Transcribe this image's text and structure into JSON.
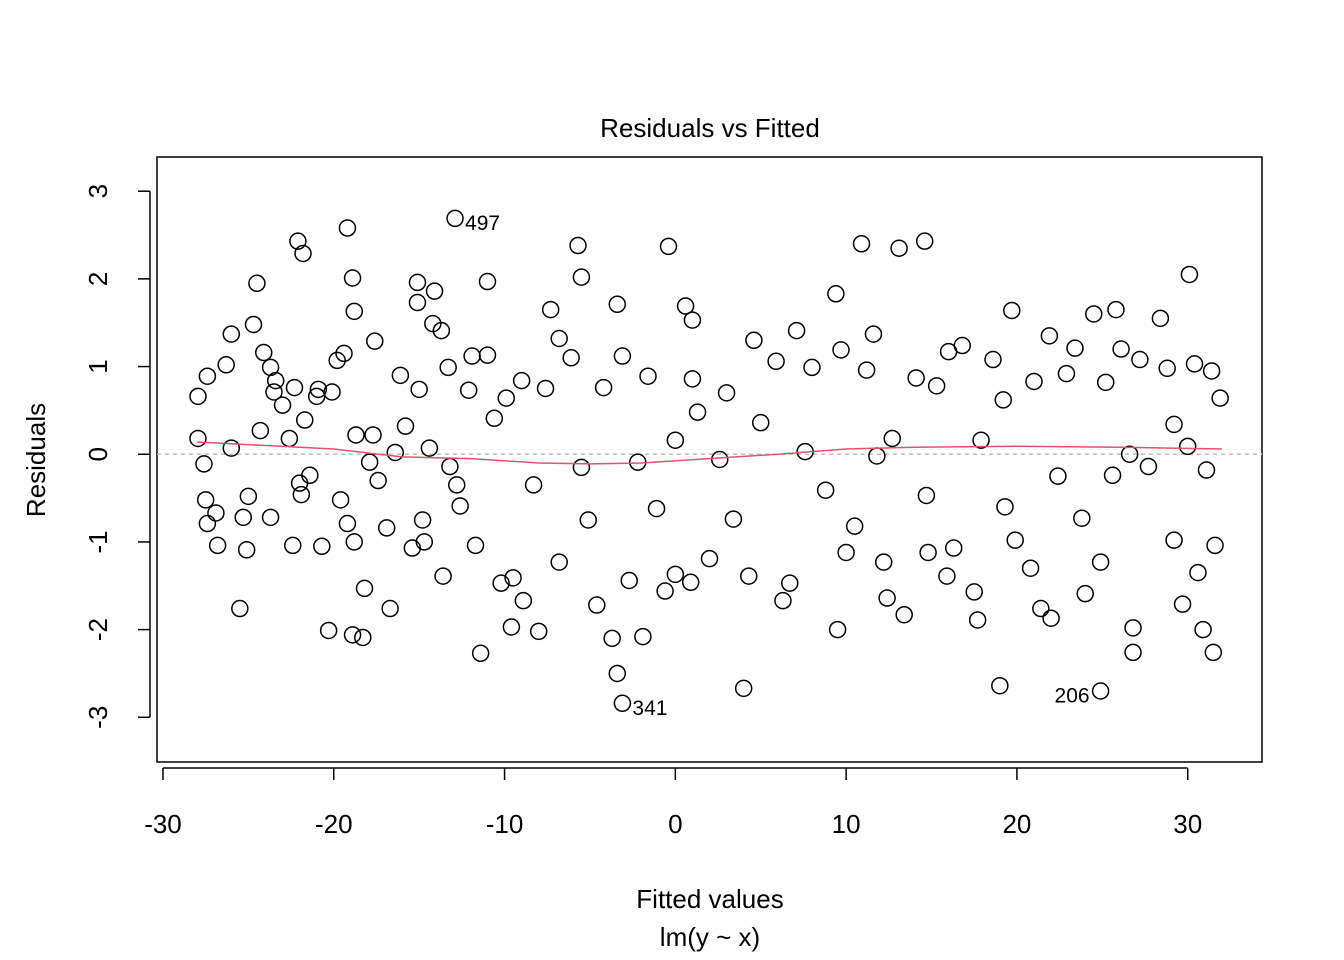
{
  "chart_data": {
    "type": "scatter",
    "title": "Residuals vs Fitted",
    "x_label": "Fitted values",
    "subtitle": "lm(y ~ x)",
    "y_label": "Residuals",
    "xlim": [
      -30.35,
      34.35
    ],
    "ylim": [
      -3.51,
      3.39
    ],
    "xticks": [
      -30,
      -20,
      -10,
      0,
      10,
      20,
      30
    ],
    "yticks": [
      -3,
      -2,
      -1,
      0,
      1,
      2,
      3
    ],
    "reference_line": 0,
    "series": [
      {
        "name": "Residuals",
        "color": "#000000",
        "x": [
          -27.95,
          -27.95,
          -27.6,
          -27.4,
          -27.5,
          -27.4,
          -26.9,
          -26.8,
          -26.3,
          -26.0,
          -26.0,
          -25.5,
          -25.3,
          -25.1,
          -25.0,
          -24.7,
          -24.5,
          -24.3,
          -24.1,
          -23.7,
          -23.7,
          -23.5,
          -23.4,
          -23.0,
          -22.6,
          -22.4,
          -22.3,
          -22.1,
          -21.8,
          -22.0,
          -21.9,
          -21.7,
          -21.4,
          -21.0,
          -20.9,
          -20.7,
          -20.3,
          -20.1,
          -19.8,
          -19.6,
          -19.4,
          -19.2,
          -19.2,
          -18.9,
          -18.8,
          -18.7,
          -18.8,
          -18.9,
          -18.3,
          -18.2,
          -17.9,
          -17.6,
          -17.7,
          -17.4,
          -16.9,
          -16.7,
          -16.4,
          -16.1,
          -15.8,
          -15.4,
          -15.1,
          -15.1,
          -15.0,
          -14.8,
          -14.7,
          -14.4,
          -14.1,
          -14.2,
          -13.7,
          -13.6,
          -13.3,
          -13.2,
          -12.8,
          -12.6,
          -12.1,
          -11.9,
          -11.7,
          -11.4,
          -11.0,
          -11.0,
          -10.6,
          -10.2,
          -9.9,
          -9.6,
          -9.5,
          -9.0,
          -8.9,
          -8.3,
          -8.0,
          -7.6,
          -7.3,
          -6.8,
          -6.8,
          -6.1,
          -5.7,
          -5.5,
          -5.5,
          -5.1,
          -4.6,
          -4.2,
          -3.7,
          -3.4,
          -3.4,
          -3.1,
          -2.7,
          -2.2,
          -1.9,
          -1.6,
          -1.1,
          -0.6,
          -0.4,
          0.0,
          0.0,
          0.6,
          1.0,
          1.0,
          0.9,
          1.3,
          2.0,
          2.6,
          3.0,
          3.4,
          4.0,
          4.3,
          4.6,
          5.0,
          5.9,
          6.3,
          6.7,
          7.1,
          7.6,
          8.0,
          8.8,
          9.4,
          9.5,
          9.7,
          10.0,
          10.5,
          10.9,
          11.2,
          11.6,
          11.8,
          12.2,
          12.4,
          12.7,
          13.1,
          13.4,
          14.1,
          14.6,
          14.7,
          14.8,
          15.3,
          15.9,
          16.0,
          16.3,
          16.8,
          17.5,
          17.7,
          17.9,
          18.6,
          19.0,
          19.2,
          19.3,
          19.7,
          19.9,
          20.8,
          21.0,
          21.4,
          21.9,
          22.0,
          22.4,
          22.9,
          23.4,
          23.8,
          24.0,
          24.5,
          24.9,
          25.2,
          25.6,
          25.8,
          26.1,
          26.6,
          26.8,
          26.8,
          27.2,
          27.7,
          28.4,
          28.8,
          29.2,
          29.2,
          29.7,
          30.0,
          30.1,
          30.4,
          30.6,
          30.9,
          31.1,
          31.4,
          31.5,
          31.6,
          31.9
        ],
        "values": [
          0.66,
          0.18,
          -0.11,
          0.89,
          -0.52,
          -0.79,
          -0.67,
          -1.04,
          1.02,
          1.37,
          0.07,
          -1.76,
          -0.72,
          -1.09,
          -0.48,
          1.48,
          1.95,
          0.27,
          1.16,
          0.99,
          -0.72,
          0.71,
          0.84,
          0.56,
          0.18,
          -1.04,
          0.76,
          2.43,
          2.29,
          -0.33,
          -0.46,
          0.39,
          -0.24,
          0.66,
          0.74,
          -1.05,
          -2.01,
          0.71,
          1.07,
          -0.52,
          1.15,
          2.58,
          -0.79,
          2.01,
          1.63,
          0.22,
          -1.0,
          -2.06,
          -2.09,
          -1.53,
          -0.09,
          1.29,
          0.22,
          -0.3,
          -0.84,
          -1.76,
          0.02,
          0.9,
          0.32,
          -1.07,
          1.96,
          1.73,
          0.74,
          -0.75,
          -1.0,
          0.07,
          1.86,
          1.49,
          1.41,
          -1.39,
          0.99,
          -0.14,
          -0.35,
          -0.59,
          0.73,
          1.12,
          -1.04,
          -2.27,
          1.97,
          1.13,
          0.41,
          -1.47,
          0.64,
          -1.97,
          -1.41,
          0.84,
          -1.67,
          -0.35,
          -2.02,
          0.75,
          1.65,
          1.32,
          -1.23,
          1.1,
          2.38,
          2.02,
          -0.15,
          -0.75,
          -1.72,
          0.76,
          -2.1,
          1.71,
          -2.5,
          1.12,
          -1.44,
          -0.09,
          -2.08,
          0.89,
          -0.62,
          -1.56,
          2.37,
          0.16,
          -1.37,
          1.69,
          1.53,
          0.86,
          -1.46,
          0.48,
          -1.19,
          -0.06,
          0.7,
          -0.74,
          -2.67,
          -1.39,
          1.3,
          0.36,
          1.06,
          -1.67,
          -1.47,
          1.41,
          0.03,
          0.99,
          -0.41,
          1.83,
          -2.0,
          1.19,
          -1.12,
          -0.82,
          2.4,
          0.96,
          1.37,
          -0.02,
          -1.23,
          -1.64,
          0.18,
          2.35,
          -1.83,
          0.87,
          2.43,
          -0.47,
          -1.12,
          0.78,
          -1.39,
          1.17,
          -1.07,
          1.24,
          -1.57,
          -1.89,
          0.16,
          1.08,
          -2.64,
          0.62,
          -0.6,
          1.64,
          -0.98,
          -1.3,
          0.83,
          -1.76,
          1.35,
          -1.87,
          -0.25,
          0.92,
          1.21,
          -0.73,
          -1.59,
          1.6,
          -1.23,
          0.82,
          -0.24,
          1.65,
          1.2,
          0.0,
          -1.98,
          -2.26,
          1.08,
          -0.14,
          1.55,
          0.98,
          0.34,
          -0.98,
          -1.71,
          0.09,
          2.05,
          1.03,
          -1.35,
          -2.0,
          -0.18,
          0.95,
          -2.26,
          -1.04,
          0.64
        ]
      },
      {
        "name": "Smoother",
        "color": "#df536b",
        "x": [
          -28,
          -24,
          -20,
          -16,
          -12,
          -8,
          -5,
          -2,
          2,
          6,
          10,
          14,
          20,
          26,
          32
        ],
        "values": [
          0.14,
          0.1,
          0.06,
          -0.03,
          -0.05,
          -0.1,
          -0.11,
          -0.1,
          -0.05,
          0.0,
          0.06,
          0.08,
          0.09,
          0.08,
          0.06
        ]
      }
    ],
    "annotations": [
      {
        "text": "497",
        "x": -12.9,
        "y": 2.69
      },
      {
        "text": "341",
        "x": -3.1,
        "y": -2.84
      },
      {
        "text": "206",
        "x": 24.9,
        "y": -2.7
      }
    ]
  }
}
